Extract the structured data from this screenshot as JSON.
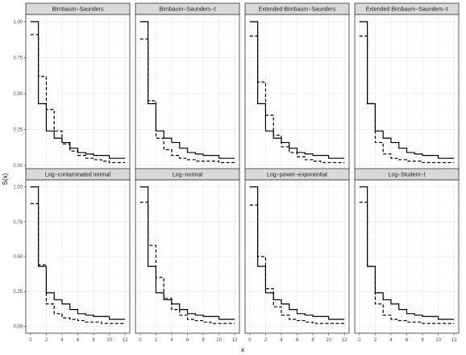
{
  "chart_data": {
    "type": "line",
    "layout": "facet-grid 2x4",
    "xlabel": "x",
    "ylabel": "S(x)",
    "xlim": [
      -0.6,
      12.6
    ],
    "ylim": [
      -0.05,
      1.05
    ],
    "x_ticks": [
      0,
      2,
      4,
      6,
      8,
      10,
      12
    ],
    "y_ticks": [
      0.0,
      0.25,
      0.5,
      0.75,
      1.0
    ],
    "y_tick_labels": [
      "0.00",
      "0.25",
      "0.50",
      "0.75",
      "1.00"
    ],
    "grid": true,
    "line_styles": {
      "empirical": "solid",
      "fitted": "dashed"
    },
    "empirical_steps": [
      [
        0,
        1.0
      ],
      [
        1,
        0.43
      ],
      [
        2,
        0.24
      ],
      [
        3,
        0.19
      ],
      [
        4,
        0.16
      ],
      [
        5,
        0.12
      ],
      [
        6,
        0.09
      ],
      [
        7,
        0.08
      ],
      [
        8,
        0.07
      ],
      [
        9,
        0.07
      ],
      [
        10,
        0.05
      ],
      [
        12,
        0.05
      ]
    ],
    "panels": [
      {
        "title": "Birnbaum−Saunders",
        "fitted_steps": [
          [
            0,
            0.91
          ],
          [
            1,
            0.62
          ],
          [
            2,
            0.39
          ],
          [
            3,
            0.24
          ],
          [
            4,
            0.15
          ],
          [
            5,
            0.1
          ],
          [
            6,
            0.07
          ],
          [
            7,
            0.05
          ],
          [
            8,
            0.04
          ],
          [
            9,
            0.03
          ],
          [
            10,
            0.02
          ],
          [
            12,
            0.02
          ]
        ]
      },
      {
        "title": "Birnbaum−Saunders−t",
        "fitted_steps": [
          [
            0,
            0.88
          ],
          [
            1,
            0.45
          ],
          [
            2,
            0.19
          ],
          [
            3,
            0.11
          ],
          [
            4,
            0.07
          ],
          [
            5,
            0.05
          ],
          [
            6,
            0.04
          ],
          [
            7,
            0.03
          ],
          [
            8,
            0.03
          ],
          [
            9,
            0.03
          ],
          [
            10,
            0.02
          ],
          [
            12,
            0.02
          ]
        ]
      },
      {
        "title": "Extended Birnbaum−Saunders",
        "fitted_steps": [
          [
            0,
            0.9
          ],
          [
            1,
            0.58
          ],
          [
            2,
            0.35
          ],
          [
            3,
            0.21
          ],
          [
            4,
            0.13
          ],
          [
            5,
            0.09
          ],
          [
            6,
            0.06
          ],
          [
            7,
            0.04
          ],
          [
            8,
            0.03
          ],
          [
            9,
            0.02
          ],
          [
            10,
            0.02
          ],
          [
            12,
            0.02
          ]
        ]
      },
      {
        "title": "Extended Birnbaum−Saunders−t",
        "fitted_steps": [
          [
            0,
            0.9
          ],
          [
            1,
            0.43
          ],
          [
            2,
            0.16
          ],
          [
            3,
            0.08
          ],
          [
            4,
            0.05
          ],
          [
            5,
            0.04
          ],
          [
            6,
            0.03
          ],
          [
            7,
            0.03
          ],
          [
            8,
            0.02
          ],
          [
            9,
            0.02
          ],
          [
            10,
            0.02
          ],
          [
            12,
            0.02
          ]
        ]
      },
      {
        "title": "Log−contaminated normal",
        "fitted_steps": [
          [
            0,
            0.88
          ],
          [
            1,
            0.44
          ],
          [
            2,
            0.16
          ],
          [
            3,
            0.09
          ],
          [
            4,
            0.06
          ],
          [
            5,
            0.05
          ],
          [
            6,
            0.04
          ],
          [
            7,
            0.03
          ],
          [
            8,
            0.03
          ],
          [
            9,
            0.02
          ],
          [
            10,
            0.02
          ],
          [
            12,
            0.02
          ]
        ]
      },
      {
        "title": "Log−normal",
        "fitted_steps": [
          [
            0,
            0.89
          ],
          [
            1,
            0.58
          ],
          [
            2,
            0.35
          ],
          [
            3,
            0.2
          ],
          [
            4,
            0.12
          ],
          [
            5,
            0.08
          ],
          [
            6,
            0.05
          ],
          [
            7,
            0.04
          ],
          [
            8,
            0.03
          ],
          [
            9,
            0.02
          ],
          [
            10,
            0.02
          ],
          [
            12,
            0.02
          ]
        ]
      },
      {
        "title": "Log−power−exponential",
        "fitted_steps": [
          [
            0,
            0.87
          ],
          [
            1,
            0.5
          ],
          [
            2,
            0.27
          ],
          [
            3,
            0.14
          ],
          [
            4,
            0.08
          ],
          [
            5,
            0.05
          ],
          [
            6,
            0.04
          ],
          [
            7,
            0.03
          ],
          [
            8,
            0.02
          ],
          [
            9,
            0.02
          ],
          [
            10,
            0.02
          ],
          [
            12,
            0.02
          ]
        ]
      },
      {
        "title": "Log−Student−t",
        "fitted_steps": [
          [
            0,
            0.89
          ],
          [
            1,
            0.43
          ],
          [
            2,
            0.16
          ],
          [
            3,
            0.08
          ],
          [
            4,
            0.05
          ],
          [
            5,
            0.04
          ],
          [
            6,
            0.03
          ],
          [
            7,
            0.03
          ],
          [
            8,
            0.02
          ],
          [
            9,
            0.02
          ],
          [
            10,
            0.02
          ],
          [
            12,
            0.02
          ]
        ]
      }
    ]
  }
}
